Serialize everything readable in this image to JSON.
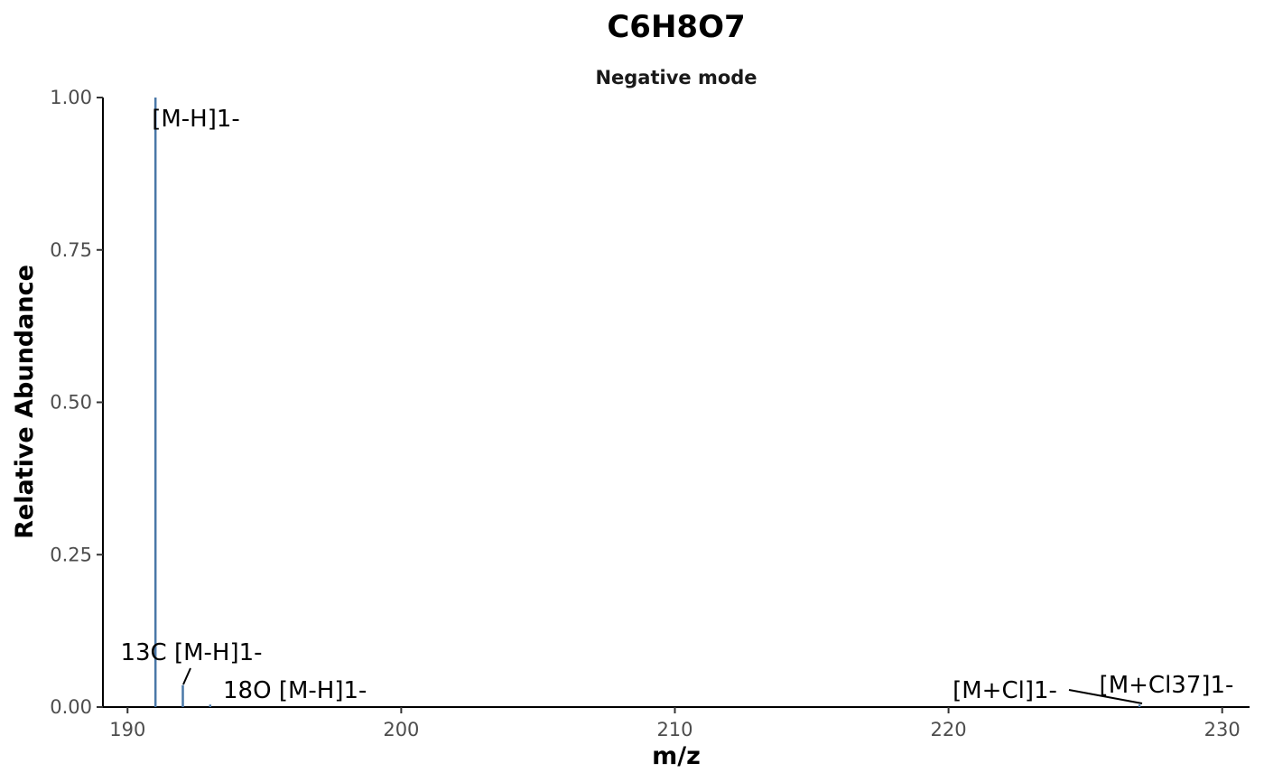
{
  "chart_data": {
    "type": "bar",
    "title": "C6H8O7",
    "subtitle": "Negative mode",
    "xlabel": "m/z",
    "ylabel": "Relative Abundance",
    "xlim": [
      189.1,
      231.0
    ],
    "ylim": [
      0,
      1.0
    ],
    "x_ticks": [
      190,
      200,
      210,
      220,
      230
    ],
    "y_ticks": [
      0.0,
      0.25,
      0.5,
      0.75,
      1.0
    ],
    "y_tick_labels": [
      "0.00",
      "0.25",
      "0.50",
      "0.75",
      "1.00"
    ],
    "grid": false,
    "bar_color": "#4a78a8",
    "peaks": [
      {
        "mz": 191.02,
        "abundance": 1.0,
        "label": "[M-H]1-"
      },
      {
        "mz": 192.02,
        "abundance": 0.036,
        "label": "13C [M-H]1-"
      },
      {
        "mz": 193.02,
        "abundance": 0.004,
        "label": "18O [M-H]1-"
      },
      {
        "mz": 226.98,
        "abundance": 0.004,
        "label": "[M+Cl37]1-"
      },
      {
        "mz": 224.99,
        "abundance": 0.0,
        "label": "[M+Cl]1-"
      }
    ]
  }
}
